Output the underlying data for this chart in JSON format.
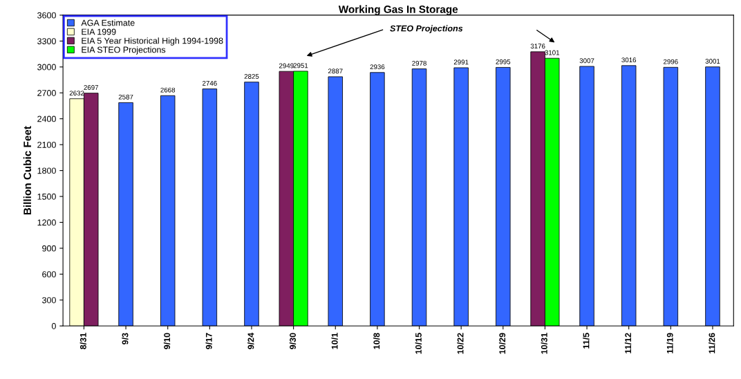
{
  "chart_data": {
    "type": "bar",
    "title": "Working Gas In Storage",
    "ylabel": "Billion Cubic Feet",
    "categories": [
      "8/31",
      "9/3",
      "9/10",
      "9/17",
      "9/24",
      "9/30",
      "10/1",
      "10/8",
      "10/15",
      "10/22",
      "10/29",
      "10/31",
      "11/5",
      "11/12",
      "11/19",
      "11/26"
    ],
    "series": [
      {
        "name": "AGA Estimate",
        "color": "#3366ff",
        "values": [
          null,
          2587,
          2668,
          2746,
          2825,
          null,
          2887,
          2936,
          2978,
          2991,
          2995,
          null,
          3007,
          3016,
          2996,
          3001
        ]
      },
      {
        "name": "EIA 1999",
        "color": "#ffffcc",
        "values": [
          2632,
          null,
          null,
          null,
          null,
          null,
          null,
          null,
          null,
          null,
          null,
          null,
          null,
          null,
          null,
          null
        ]
      },
      {
        "name": "EIA 5 Year Historical High 1994-1998",
        "color": "#7f1f5f",
        "values": [
          2697,
          null,
          null,
          null,
          null,
          2949,
          null,
          null,
          null,
          null,
          null,
          3176,
          null,
          null,
          null,
          null
        ]
      },
      {
        "name": "EIA STEO Projections",
        "color": "#00ff00",
        "values": [
          null,
          null,
          null,
          null,
          null,
          2951,
          null,
          null,
          null,
          null,
          null,
          3101,
          null,
          null,
          null,
          null
        ]
      }
    ],
    "ylim": [
      0,
      3600
    ],
    "yticks": [
      0,
      300,
      600,
      900,
      1200,
      1500,
      1800,
      2100,
      2400,
      2700,
      3000,
      3300,
      3600
    ],
    "data_labels": true,
    "legend": "top left",
    "grid": false,
    "annotations": [
      "STEO Projections"
    ]
  }
}
